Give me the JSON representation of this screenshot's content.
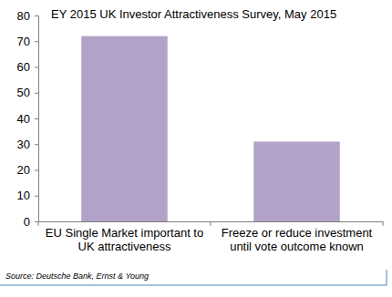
{
  "chart_data": {
    "type": "bar",
    "title": "EY 2015 UK Investor Attractiveness Survey, May 2015",
    "categories": [
      "EU Single Market important to UK attractiveness",
      "Freeze or reduce investment until vote outcome known"
    ],
    "values": [
      72,
      31
    ],
    "color": "#b3a2c7",
    "ylim": [
      0,
      80
    ],
    "yticks": [
      0,
      10,
      20,
      30,
      40,
      50,
      60,
      70,
      80
    ],
    "grid": false,
    "source": "Source: Deutsche Bank, Ernst & Young"
  }
}
